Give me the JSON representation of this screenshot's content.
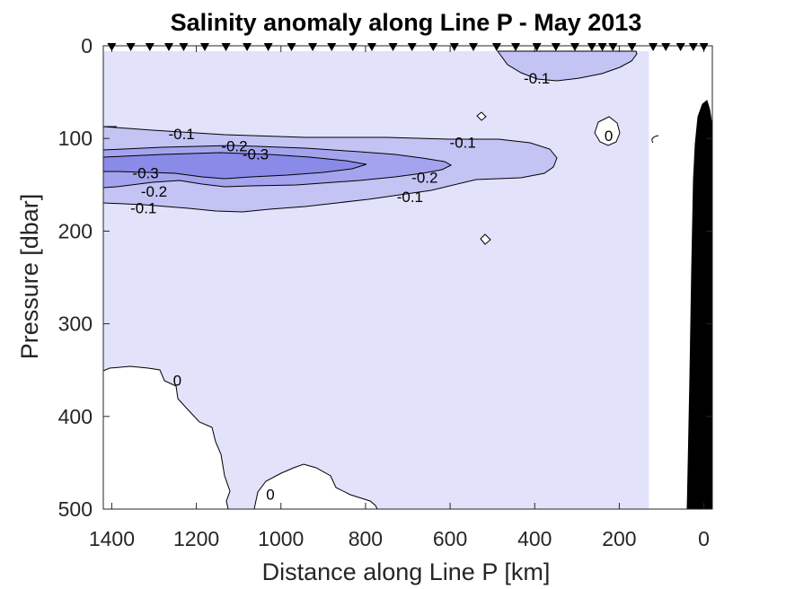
{
  "chart_data": {
    "type": "contour",
    "title": "Salinity anomaly along Line P - May 2013",
    "xlabel": "Distance along Line P [km]",
    "ylabel": "Pressure [dbar]",
    "xlim": [
      1420,
      -20
    ],
    "ylim": [
      500,
      0
    ],
    "x_reversed": true,
    "y_reversed": true,
    "xticks": [
      1400,
      1200,
      1000,
      800,
      600,
      400,
      200,
      0
    ],
    "yticks": [
      0,
      100,
      200,
      300,
      400,
      500
    ],
    "contour_levels": [
      -0.3,
      -0.2,
      -0.1,
      0
    ],
    "fill_colors": {
      "-0.1_to_0": "#e2e2fb",
      "-0.2_to_-0.1": "#c3c3f4",
      "-0.3_to_-0.2": "#a4a4ee",
      "below_-0.3": "#8a8ae8"
    },
    "data_extent_km": [
      1420,
      130
    ],
    "station_markers_km": [
      1400,
      1355,
      1310,
      1265,
      1230,
      1180,
      1130,
      1080,
      1030,
      975,
      925,
      880,
      830,
      785,
      735,
      690,
      640,
      590,
      545,
      490,
      445,
      395,
      350,
      305,
      265,
      240,
      215,
      170,
      120,
      90,
      55,
      25,
      0
    ],
    "bathymetry_color": "#000000",
    "contour_labels": [
      {
        "text": "-0.1",
        "x": 1235,
        "y": 95
      },
      {
        "text": "-0.2",
        "x": 1110,
        "y": 108
      },
      {
        "text": "-0.3",
        "x": 1060,
        "y": 117
      },
      {
        "text": "-0.3",
        "x": 1320,
        "y": 137
      },
      {
        "text": "-0.2",
        "x": 1300,
        "y": 157
      },
      {
        "text": "-0.1",
        "x": 1325,
        "y": 175
      },
      {
        "text": "-0.1",
        "x": 570,
        "y": 104
      },
      {
        "text": "-0.2",
        "x": 660,
        "y": 142
      },
      {
        "text": "-0.1",
        "x": 695,
        "y": 163
      },
      {
        "text": "-0.1",
        "x": 395,
        "y": 35
      },
      {
        "text": "0",
        "x": 225,
        "y": 97
      },
      {
        "text": "0",
        "x": 1245,
        "y": 361
      },
      {
        "text": "0",
        "x": 1025,
        "y": 484
      }
    ],
    "grid": false,
    "legend": "none"
  }
}
